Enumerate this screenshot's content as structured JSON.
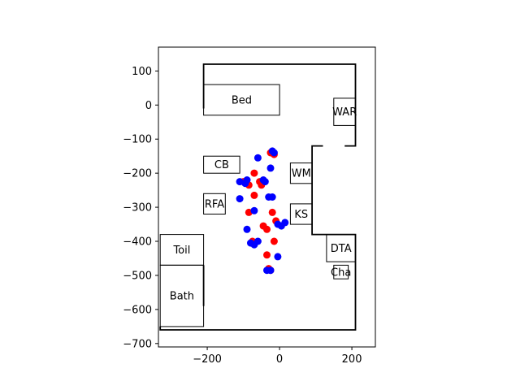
{
  "chart_data": {
    "type": "scatter",
    "title": "",
    "xlabel": "",
    "ylabel": "",
    "xlim": [
      -335,
      265
    ],
    "ylim": [
      -710,
      170
    ],
    "xticks": [
      -200,
      0,
      200
    ],
    "yticks": [
      100,
      0,
      -100,
      -200,
      -300,
      -400,
      -500,
      -600,
      -700
    ],
    "xtick_labels": [
      "−200",
      "0",
      "200"
    ],
    "ytick_labels": [
      "100",
      "0",
      "−100",
      "−200",
      "−300",
      "−400",
      "−500",
      "−600",
      "−700"
    ],
    "grid": false,
    "walls": [
      [
        [
          -210,
          -10
        ],
        [
          -210,
          120
        ],
        [
          210,
          120
        ],
        [
          210,
          -120
        ],
        [
          180,
          -120
        ]
      ],
      [
        [
          120,
          -120
        ],
        [
          90,
          -120
        ],
        [
          90,
          -380
        ],
        [
          210,
          -380
        ],
        [
          210,
          -660
        ],
        [
          -330,
          -660
        ],
        [
          -330,
          -650
        ]
      ],
      [
        [
          -210,
          -590
        ],
        [
          -210,
          -470
        ]
      ]
    ],
    "objects": [
      {
        "label": "Bed",
        "x0": -210,
        "x1": 0,
        "y0": -30,
        "y1": 60
      },
      {
        "label": "WAR",
        "x0": 150,
        "x1": 210,
        "y0": -60,
        "y1": 20
      },
      {
        "label": "CB",
        "x0": -210,
        "x1": -110,
        "y0": -200,
        "y1": -150
      },
      {
        "label": "WM",
        "x0": 30,
        "x1": 90,
        "y0": -230,
        "y1": -170
      },
      {
        "label": "RFA",
        "x0": -210,
        "x1": -150,
        "y0": -320,
        "y1": -260
      },
      {
        "label": "KS",
        "x0": 30,
        "x1": 90,
        "y0": -350,
        "y1": -290
      },
      {
        "label": "DTA",
        "x0": 130,
        "x1": 210,
        "y0": -460,
        "y1": -380
      },
      {
        "label": "Toil",
        "x0": -330,
        "x1": -210,
        "y0": -470,
        "y1": -380
      },
      {
        "label": "Cha",
        "x0": 150,
        "x1": 190,
        "y0": -510,
        "y1": -470
      },
      {
        "label": "Bath",
        "x0": -330,
        "x1": -210,
        "y0": -650,
        "y1": -470
      }
    ],
    "series": [
      {
        "color": "#ff0000",
        "points": [
          [
            -25,
            -140
          ],
          [
            -15,
            -145
          ],
          [
            -70,
            -200
          ],
          [
            -100,
            -225
          ],
          [
            -55,
            -225
          ],
          [
            -85,
            -235
          ],
          [
            -50,
            -235
          ],
          [
            -70,
            -265
          ],
          [
            -85,
            -315
          ],
          [
            -20,
            -315
          ],
          [
            -10,
            -340
          ],
          [
            -45,
            -355
          ],
          [
            -35,
            -365
          ],
          [
            -75,
            -400
          ],
          [
            -15,
            -400
          ],
          [
            -35,
            -440
          ],
          [
            -30,
            -480
          ],
          [
            -25,
            -485
          ]
        ]
      },
      {
        "color": "#0000ff",
        "points": [
          [
            -20,
            -135
          ],
          [
            -60,
            -155
          ],
          [
            -15,
            -140
          ],
          [
            -25,
            -185
          ],
          [
            -110,
            -225
          ],
          [
            -90,
            -220
          ],
          [
            -95,
            -230
          ],
          [
            -45,
            -220
          ],
          [
            -40,
            -225
          ],
          [
            -30,
            -270
          ],
          [
            -20,
            -270
          ],
          [
            -110,
            -275
          ],
          [
            -70,
            -310
          ],
          [
            -5,
            -350
          ],
          [
            5,
            -355
          ],
          [
            15,
            -345
          ],
          [
            -90,
            -365
          ],
          [
            -80,
            -405
          ],
          [
            -60,
            -400
          ],
          [
            -70,
            -410
          ],
          [
            -5,
            -445
          ],
          [
            -35,
            -485
          ],
          [
            -25,
            -485
          ]
        ]
      }
    ]
  }
}
